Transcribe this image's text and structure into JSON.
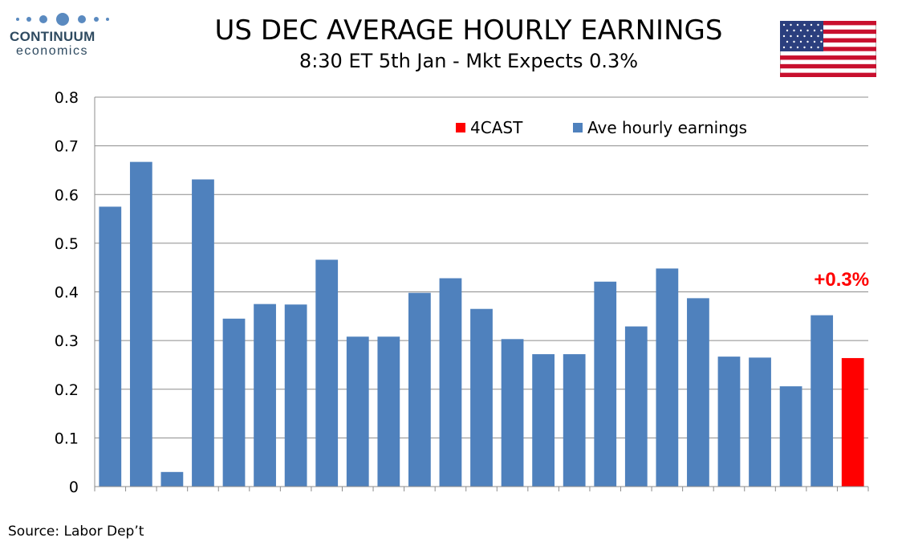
{
  "brand": {
    "name": "CONTINUUM",
    "sub": "economics",
    "color": "#2e4a60"
  },
  "header": {
    "title": "US DEC AVERAGE HOURLY EARNINGS",
    "subtitle": "8:30 ET 5th Jan - Mkt Expects 0.3%"
  },
  "flag_icon": "us-flag-icon",
  "source": "Source: Labor Dep’t",
  "chart_data": {
    "type": "bar",
    "ylim": [
      0,
      0.8
    ],
    "yticks": [
      "0",
      "0.1",
      "0.2",
      "0.3",
      "0.4",
      "0.5",
      "0.6",
      "0.7",
      "0.8"
    ],
    "grid": true,
    "legend_position": "top-right",
    "series": [
      {
        "name": "Ave hourly earnings",
        "color": "#4f81bd",
        "values": [
          0.575,
          0.667,
          0.03,
          0.631,
          0.345,
          0.375,
          0.374,
          0.466,
          0.308,
          0.308,
          0.398,
          0.428,
          0.365,
          0.303,
          0.272,
          0.272,
          0.421,
          0.329,
          0.448,
          0.387,
          0.267,
          0.265,
          0.206,
          0.352,
          null
        ]
      },
      {
        "name": "4CAST",
        "color": "#ff0000",
        "values": [
          null,
          null,
          null,
          null,
          null,
          null,
          null,
          null,
          null,
          null,
          null,
          null,
          null,
          null,
          null,
          null,
          null,
          null,
          null,
          null,
          null,
          null,
          null,
          null,
          0.264
        ]
      }
    ],
    "annotation": {
      "text": "+0.3%",
      "color": "#ff0000"
    }
  }
}
